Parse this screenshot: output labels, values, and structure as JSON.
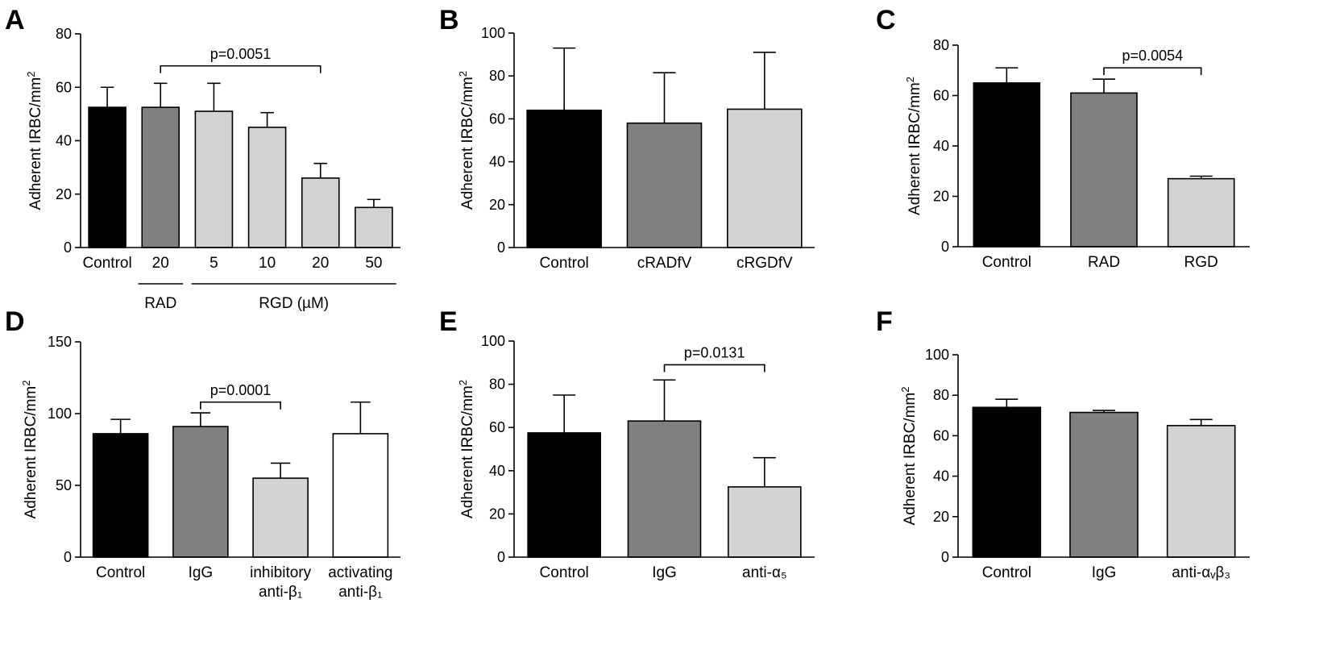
{
  "chart_data": [
    {
      "type": "bar",
      "panel": "A",
      "ylabel": "Adherent IRBC/mm²",
      "ylim": [
        0,
        80
      ],
      "yticks": [
        0,
        20,
        40,
        60,
        80
      ],
      "categories": [
        "Control",
        "20",
        "5",
        "10",
        "20",
        "50"
      ],
      "groups": [
        {
          "label": "RAD",
          "from": 1,
          "to": 1
        },
        {
          "label": "RGD (µM)",
          "from": 2,
          "to": 5
        }
      ],
      "values": [
        52.5,
        52.5,
        51,
        45,
        26,
        15
      ],
      "errors": [
        7.5,
        9,
        10.5,
        5.5,
        5.5,
        3
      ],
      "colors": [
        "#000000",
        "#808080",
        "#d3d3d3",
        "#d3d3d3",
        "#d3d3d3",
        "#d3d3d3"
      ],
      "significance": {
        "text": "p=0.0051",
        "from": 1,
        "to": 4,
        "y": 68
      }
    },
    {
      "type": "bar",
      "panel": "B",
      "ylabel": "Adherent IRBC/mm²",
      "ylim": [
        0,
        100
      ],
      "yticks": [
        0,
        20,
        40,
        60,
        80,
        100
      ],
      "categories": [
        "Control",
        "cRADfV",
        "cRGDfV"
      ],
      "values": [
        64,
        58,
        64.5
      ],
      "errors": [
        29,
        23.5,
        26.5
      ],
      "colors": [
        "#000000",
        "#808080",
        "#d3d3d3"
      ]
    },
    {
      "type": "bar",
      "panel": "C",
      "ylabel": "Adherent IRBC/mm²",
      "ylim": [
        0,
        80
      ],
      "yticks": [
        0,
        20,
        40,
        60,
        80
      ],
      "categories": [
        "Control",
        "RAD",
        "RGD"
      ],
      "values": [
        65,
        61,
        27
      ],
      "errors": [
        6,
        5.5,
        1
      ],
      "colors": [
        "#000000",
        "#808080",
        "#d3d3d3"
      ],
      "significance": {
        "text": "p=0.0054",
        "from": 1,
        "to": 2,
        "y": 71
      }
    },
    {
      "type": "bar",
      "panel": "D",
      "ylabel": "Adherent IRBC/mm²",
      "ylim": [
        0,
        150
      ],
      "yticks": [
        0,
        50,
        100,
        150
      ],
      "categories": [
        [
          "Control"
        ],
        [
          "IgG"
        ],
        [
          "inhibitory",
          "anti-β₁"
        ],
        [
          "activating",
          "anti-β₁"
        ]
      ],
      "values": [
        86,
        91,
        55,
        86
      ],
      "errors": [
        10,
        9.5,
        10.5,
        22
      ],
      "colors": [
        "#000000",
        "#808080",
        "#d3d3d3",
        "#ffffff"
      ],
      "significance": {
        "text": "p=0.0001",
        "from": 1,
        "to": 2,
        "y": 108
      }
    },
    {
      "type": "bar",
      "panel": "E",
      "ylabel": "Adherent IRBC/mm²",
      "ylim": [
        0,
        100
      ],
      "yticks": [
        0,
        20,
        40,
        60,
        80,
        100
      ],
      "categories": [
        "Control",
        "IgG",
        "anti-α₅"
      ],
      "values": [
        57.5,
        63,
        32.5
      ],
      "errors": [
        17.5,
        19,
        13.5
      ],
      "colors": [
        "#000000",
        "#808080",
        "#d3d3d3"
      ],
      "significance": {
        "text": "p=0.0131",
        "from": 1,
        "to": 2,
        "y": 89
      }
    },
    {
      "type": "bar",
      "panel": "F",
      "ylabel": "Adherent IRBC/mm²",
      "ylim": [
        0,
        100
      ],
      "yticks": [
        0,
        20,
        40,
        60,
        80,
        100
      ],
      "categories": [
        "Control",
        "IgG",
        "anti-αᵥβ₃"
      ],
      "values": [
        74,
        71.5,
        65
      ],
      "errors": [
        4,
        1,
        3
      ],
      "colors": [
        "#000000",
        "#808080",
        "#d3d3d3"
      ]
    }
  ]
}
